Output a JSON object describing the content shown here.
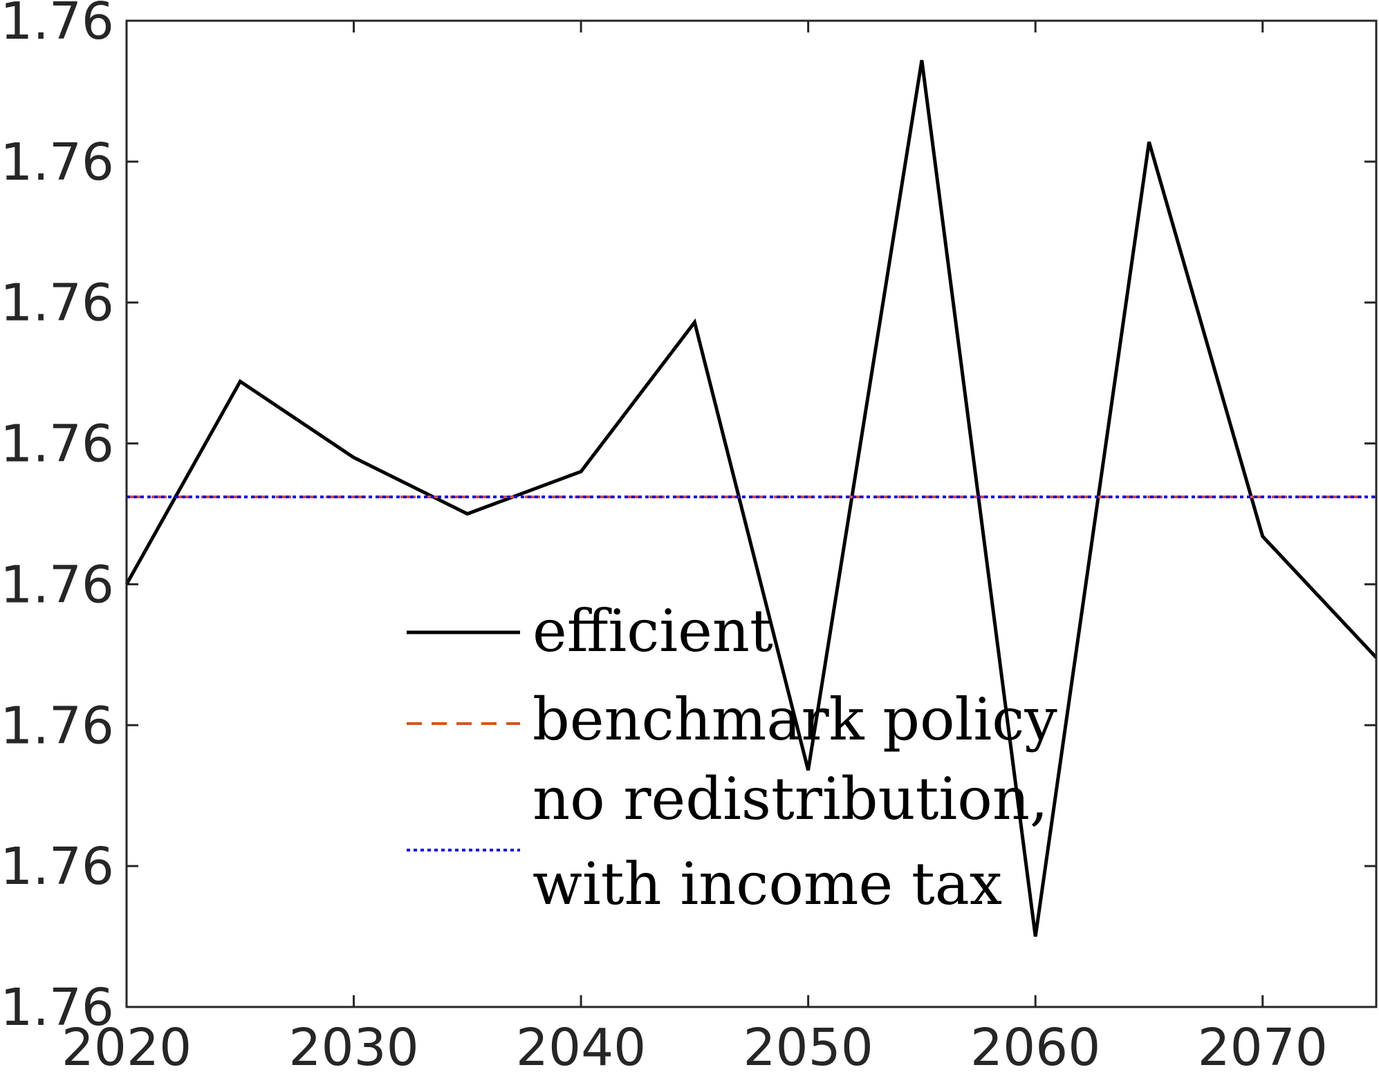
{
  "chart_data": {
    "type": "line",
    "title": "",
    "xlabel": "",
    "ylabel": "",
    "x": [
      2020,
      2025,
      2030,
      2035,
      2040,
      2045,
      2050,
      2055,
      2060,
      2065,
      2070,
      2075
    ],
    "xlim": [
      2020,
      2075
    ],
    "x_ticks": [
      2020,
      2030,
      2040,
      2050,
      2060,
      2070
    ],
    "x_tick_labels": [
      "2020",
      "2030",
      "2040",
      "2050",
      "2060",
      "2070"
    ],
    "ylim": [
      0,
      7
    ],
    "y_ticks": [
      0,
      1,
      2,
      3,
      4,
      5,
      6,
      7
    ],
    "y_tick_labels": [
      "1.76",
      "1.76",
      "1.76",
      "1.76",
      "1.76",
      "1.76",
      "1.76",
      "1.76"
    ],
    "y_scale_note": "tick labels all read 1.76; y values given in tick-interval units",
    "series": [
      {
        "name": "efficient",
        "color": "#000000",
        "style": "solid",
        "values": [
          3.0,
          4.44,
          3.9,
          3.5,
          3.8,
          4.86,
          1.68,
          6.72,
          0.5,
          6.14,
          3.34,
          2.48
        ]
      },
      {
        "name": "benchmark policy",
        "color": "#D95319",
        "style": "dashed",
        "values": [
          3.62,
          3.62,
          3.62,
          3.62,
          3.62,
          3.62,
          3.62,
          3.62,
          3.62,
          3.62,
          3.62,
          3.62
        ]
      },
      {
        "name": "no redistribution, with income tax",
        "label_lines": [
          "no redistribution,",
          "with income tax"
        ],
        "color": "#0000FF",
        "style": "dotted",
        "values": [
          3.62,
          3.62,
          3.62,
          3.62,
          3.62,
          3.62,
          3.62,
          3.62,
          3.62,
          3.62,
          3.62,
          3.62
        ]
      }
    ],
    "grid": false,
    "legend": {
      "placement": "center-bottom",
      "box": false
    }
  }
}
